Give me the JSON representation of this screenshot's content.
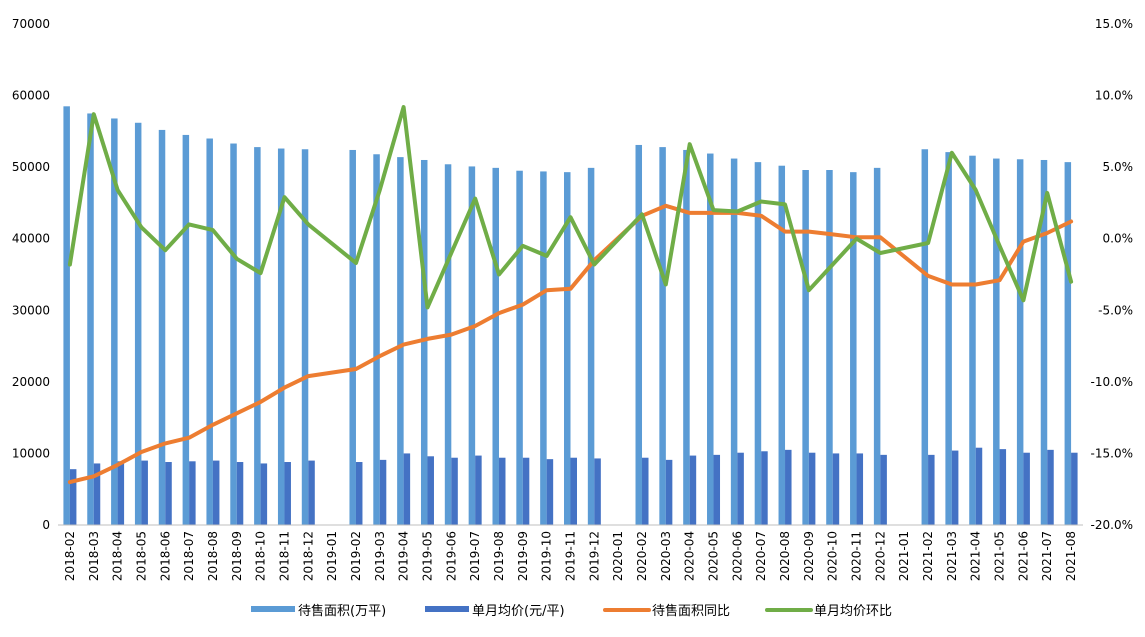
{
  "chart_data": {
    "type": "bar",
    "categories": [
      "2018-02",
      "2018-03",
      "2018-04",
      "2018-05",
      "2018-06",
      "2018-07",
      "2018-08",
      "2018-09",
      "2018-10",
      "2018-11",
      "2018-12",
      "2019-01",
      "2019-02",
      "2019-03",
      "2019-04",
      "2019-05",
      "2019-06",
      "2019-07",
      "2019-08",
      "2019-09",
      "2019-10",
      "2019-11",
      "2019-12",
      "2020-01",
      "2020-02",
      "2020-03",
      "2020-04",
      "2020-05",
      "2020-06",
      "2020-07",
      "2020-08",
      "2020-09",
      "2020-10",
      "2020-11",
      "2020-12",
      "2021-01",
      "2021-02",
      "2021-03",
      "2021-04",
      "2021-05",
      "2021-06",
      "2021-07",
      "2021-08"
    ],
    "y_left": {
      "min": 0,
      "max": 70000,
      "step": 10000,
      "ticks": [
        "0",
        "10000",
        "20000",
        "30000",
        "40000",
        "50000",
        "60000",
        "70000"
      ]
    },
    "y_right": {
      "min": -20,
      "max": 15,
      "step": 5,
      "ticks": [
        "-20.0%",
        "-15.0%",
        "-10.0%",
        "-5.0%",
        "0.0%",
        "5.0%",
        "10.0%",
        "15.0%"
      ]
    },
    "grid": false,
    "legend_position": "bottom",
    "series": [
      {
        "name": "待售面积(万平)",
        "kind": "bar",
        "axis": "left",
        "color": "#5b9bd5",
        "values": [
          58500,
          57500,
          56800,
          56200,
          55200,
          54500,
          54000,
          53300,
          52800,
          52600,
          52500,
          null,
          52400,
          51800,
          51400,
          51000,
          50400,
          50100,
          49900,
          49500,
          49400,
          49300,
          49900,
          null,
          53100,
          52800,
          52400,
          51900,
          51200,
          50700,
          50200,
          49600,
          49600,
          49300,
          49900,
          null,
          52500,
          52100,
          51600,
          51200,
          51100,
          51000,
          50700
        ]
      },
      {
        "name": "单月均价(元/平)",
        "kind": "bar",
        "axis": "left",
        "color": "#4472c4",
        "values": [
          7800,
          8600,
          8900,
          9000,
          8800,
          8900,
          9000,
          8800,
          8600,
          8800,
          9000,
          null,
          8800,
          9100,
          10000,
          9600,
          9400,
          9700,
          9400,
          9400,
          9200,
          9400,
          9300,
          null,
          9400,
          9100,
          9700,
          9800,
          10100,
          10300,
          10500,
          10100,
          10000,
          10000,
          9800,
          null,
          9800,
          10400,
          10800,
          10600,
          10100,
          10500,
          10100
        ]
      },
      {
        "name": "待售面积同比",
        "kind": "line",
        "axis": "right",
        "color": "#ed7d31",
        "values": [
          -17.0,
          -16.6,
          -15.8,
          -14.9,
          -14.3,
          -13.9,
          -13.0,
          -12.2,
          -11.4,
          -10.4,
          -9.6,
          null,
          -9.1,
          -8.2,
          -7.4,
          -7.0,
          -6.7,
          -6.1,
          -5.2,
          -4.6,
          -3.6,
          -3.5,
          -1.5,
          null,
          1.6,
          2.3,
          1.8,
          1.8,
          1.8,
          1.6,
          0.5,
          0.5,
          0.3,
          0.1,
          0.1,
          null,
          -2.6,
          -3.2,
          -3.2,
          -2.9,
          -0.2,
          0.4,
          1.2
        ]
      },
      {
        "name": "单月均价环比",
        "kind": "line",
        "axis": "right",
        "color": "#70ad47",
        "values": [
          -1.8,
          8.7,
          3.4,
          0.8,
          -0.8,
          1.0,
          0.6,
          -1.4,
          -2.4,
          2.9,
          1.0,
          null,
          -1.7,
          3.4,
          9.2,
          -4.8,
          -1.0,
          2.8,
          -2.5,
          -0.5,
          -1.2,
          1.5,
          -1.8,
          null,
          1.7,
          -3.2,
          6.6,
          2.0,
          1.9,
          2.6,
          2.4,
          -3.6,
          -1.8,
          0.0,
          -1.0,
          null,
          -0.3,
          6.0,
          3.4,
          -0.5,
          -4.3,
          3.2,
          -3.0
        ]
      }
    ]
  }
}
